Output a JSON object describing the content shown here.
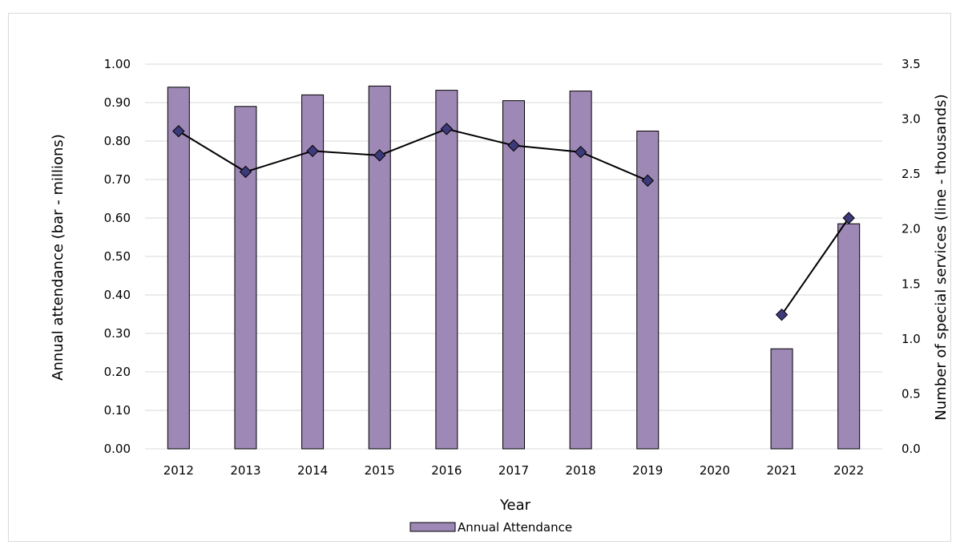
{
  "chart_data": {
    "type": "bar",
    "categories": [
      "2012",
      "2013",
      "2014",
      "2015",
      "2016",
      "2017",
      "2018",
      "2019",
      "2020",
      "2021",
      "2022"
    ],
    "series": [
      {
        "name": "Annual Attendance",
        "kind": "bar",
        "axis": "left",
        "values": [
          0.94,
          0.89,
          0.92,
          0.943,
          0.932,
          0.905,
          0.93,
          0.826,
          null,
          0.26,
          0.585
        ]
      },
      {
        "kind": "line",
        "axis": "right",
        "values": [
          2.89,
          2.52,
          2.71,
          2.67,
          2.91,
          2.76,
          2.7,
          2.44,
          null,
          1.22,
          2.1
        ]
      }
    ],
    "xlabel": "Year",
    "ylabel": "Annual attendance (bar - millions)",
    "y2label": "Number of special services (line - thousands)",
    "ylim": [
      0,
      1.0
    ],
    "y2lim": [
      0,
      3.5
    ],
    "yticks": [
      "0.00",
      "0.10",
      "0.20",
      "0.30",
      "0.40",
      "0.50",
      "0.60",
      "0.70",
      "0.80",
      "0.90",
      "1.00"
    ],
    "y2ticks": [
      "0.0",
      "0.5",
      "1.0",
      "1.5",
      "2.0",
      "2.5",
      "3.0",
      "3.5"
    ],
    "grid": true,
    "legend": "bottom",
    "colors": {
      "bar_fill": "#9e88b5",
      "bar_stroke": "#000000",
      "line": "#000000",
      "marker_fill": "#3d3a7a",
      "grid": "#d9d9d9",
      "top_bar": "#ffffff"
    }
  }
}
